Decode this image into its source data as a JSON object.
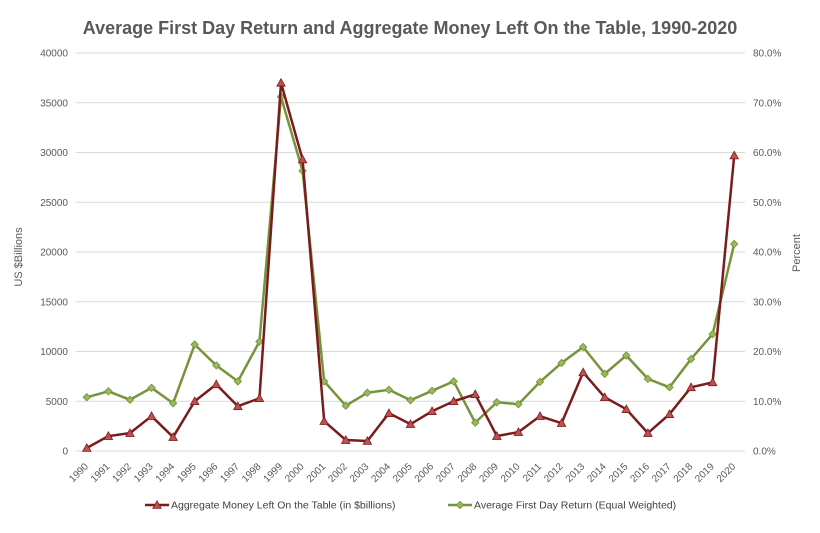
{
  "chart_data": {
    "type": "line",
    "title": "Average First Day Return and Aggregate Money Left On the Table, 1990-2020",
    "ylabel": "US $Billions",
    "y2label": "Percent",
    "xlabel": "",
    "x": [
      "1990",
      "1991",
      "1992",
      "1993",
      "1994",
      "1995",
      "1996",
      "1997",
      "1998",
      "1999",
      "2000",
      "2001",
      "2002",
      "2003",
      "2004",
      "2005",
      "2006",
      "2007",
      "2008",
      "2009",
      "2010",
      "2011",
      "2012",
      "2013",
      "2014",
      "2015",
      "2016",
      "2017",
      "2018",
      "2019",
      "2020"
    ],
    "ylim": [
      0,
      40000
    ],
    "y_ticks": [
      "0",
      "5000",
      "10000",
      "15000",
      "20000",
      "25000",
      "30000",
      "35000",
      "40000"
    ],
    "y2lim": [
      0,
      80
    ],
    "y2_ticks": [
      "0.0%",
      "10.0%",
      "20.0%",
      "30.0%",
      "40.0%",
      "50.0%",
      "60.0%",
      "70.0%",
      "80.0%"
    ],
    "grid": true,
    "legend_position": "bottom",
    "series": [
      {
        "name": "Aggregate Money Left On the Table (in $billions)",
        "axis": "left",
        "color": "#7b1c1c",
        "marker": "triangle",
        "marker_color": "#c0504d",
        "values": [
          300,
          1500,
          1800,
          3500,
          1400,
          5000,
          6700,
          4500,
          5300,
          37000,
          29300,
          3000,
          1100,
          1000,
          3800,
          2700,
          4000,
          5000,
          5700,
          1500,
          1900,
          3500,
          2800,
          7900,
          5400,
          4200,
          1800,
          3700,
          6400,
          6900,
          29700
        ]
      },
      {
        "name": "Average First Day Return (Equal Weighted)",
        "axis": "right",
        "color": "#77933c",
        "marker": "diamond",
        "marker_color": "#9bbb59",
        "values": [
          10.8,
          12.0,
          10.3,
          12.7,
          9.6,
          21.4,
          17.2,
          14.0,
          22.0,
          71.2,
          56.3,
          14.0,
          9.1,
          11.7,
          12.3,
          10.2,
          12.1,
          14.0,
          5.7,
          9.8,
          9.4,
          13.9,
          17.7,
          20.9,
          15.5,
          19.2,
          14.5,
          12.8,
          18.5,
          23.5,
          41.6
        ]
      }
    ]
  }
}
